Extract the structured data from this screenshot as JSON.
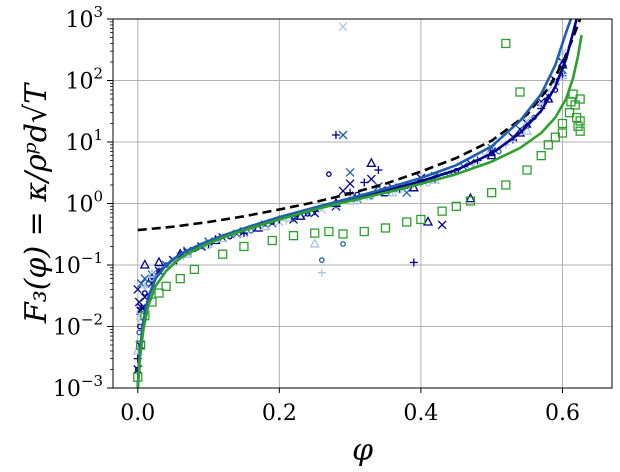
{
  "chart_data": {
    "type": "scatter",
    "title": "",
    "xlabel": "φ",
    "ylabel": "F₃(φ) = κ/ρᵖd√T",
    "xlim": [
      -0.035,
      0.67
    ],
    "ylim": [
      0.001,
      1000
    ],
    "yscale": "log",
    "grid": true,
    "x_ticks": [
      0.0,
      0.2,
      0.4,
      0.6
    ],
    "x_tick_labels": [
      "0.0",
      "0.2",
      "0.4",
      "0.6"
    ],
    "y_ticks": [
      0.001,
      0.01,
      0.1,
      1,
      10,
      100,
      1000
    ],
    "y_tick_labels": [
      {
        "base": "10",
        "exp": "−3"
      },
      {
        "base": "10",
        "exp": "−2"
      },
      {
        "base": "10",
        "exp": "−1"
      },
      {
        "base": "10",
        "exp": "0"
      },
      {
        "base": "10",
        "exp": "1"
      },
      {
        "base": "10",
        "exp": "2"
      },
      {
        "base": "10",
        "exp": "3"
      }
    ],
    "colors": {
      "navy": "#00008b",
      "blue": "#1f5fad",
      "light_blue": "#a9c4e4",
      "green": "#2ca02c",
      "black": "#000000"
    },
    "curves": [
      {
        "style": "dashed",
        "color": "#000000",
        "x": [
          0.0,
          0.05,
          0.1,
          0.15,
          0.2,
          0.25,
          0.3,
          0.35,
          0.4,
          0.45,
          0.5,
          0.55,
          0.58,
          0.6,
          0.615,
          0.625
        ],
        "y": [
          0.37,
          0.42,
          0.5,
          0.62,
          0.8,
          1.05,
          1.45,
          2.1,
          3.3,
          5.5,
          10.5,
          28,
          75,
          190,
          500,
          1000
        ]
      },
      {
        "style": "solid",
        "color": "#00008b",
        "x": [
          0.0,
          0.003,
          0.008,
          0.015,
          0.025,
          0.04,
          0.06,
          0.09,
          0.12,
          0.16,
          0.2,
          0.25,
          0.3,
          0.35,
          0.4,
          0.45,
          0.5,
          0.54,
          0.57,
          0.59,
          0.605,
          0.615,
          0.62
        ],
        "y": [
          0.001,
          0.004,
          0.012,
          0.03,
          0.06,
          0.1,
          0.15,
          0.22,
          0.3,
          0.42,
          0.58,
          0.82,
          1.15,
          1.6,
          2.3,
          3.5,
          6.5,
          14,
          32,
          80,
          220,
          600,
          1000
        ]
      },
      {
        "style": "solid",
        "color": "#1f5fad",
        "x": [
          0.0,
          0.003,
          0.008,
          0.015,
          0.025,
          0.04,
          0.06,
          0.09,
          0.12,
          0.16,
          0.2,
          0.25,
          0.3,
          0.35,
          0.4,
          0.45,
          0.5,
          0.54,
          0.57,
          0.59,
          0.605,
          0.612
        ],
        "y": [
          0.001,
          0.004,
          0.012,
          0.03,
          0.06,
          0.1,
          0.15,
          0.22,
          0.3,
          0.43,
          0.6,
          0.86,
          1.22,
          1.75,
          2.6,
          4.2,
          8.5,
          22,
          60,
          180,
          600,
          1000
        ]
      },
      {
        "style": "solid",
        "color": "#2ca02c",
        "x": [
          0.0,
          0.003,
          0.008,
          0.015,
          0.025,
          0.04,
          0.06,
          0.09,
          0.12,
          0.16,
          0.2,
          0.25,
          0.3,
          0.35,
          0.4,
          0.45,
          0.5,
          0.54,
          0.57,
          0.59,
          0.605,
          0.615,
          0.622,
          0.627
        ],
        "y": [
          0.001,
          0.003,
          0.009,
          0.022,
          0.045,
          0.08,
          0.13,
          0.2,
          0.28,
          0.4,
          0.55,
          0.8,
          1.1,
          1.5,
          2.1,
          3.0,
          4.8,
          8,
          14,
          25,
          50,
          110,
          250,
          550
        ]
      }
    ],
    "series": [
      {
        "marker": "x",
        "color": "#00008b",
        "points": [
          [
            0.0,
            0.04
          ],
          [
            0.002,
            0.025
          ],
          [
            0.004,
            0.018
          ],
          [
            0.003,
            0.005
          ],
          [
            0.0,
            0.002
          ],
          [
            0.006,
            0.02
          ],
          [
            0.01,
            0.03
          ],
          [
            0.02,
            0.05
          ],
          [
            0.03,
            0.08
          ],
          [
            0.05,
            0.12
          ],
          [
            0.07,
            0.16
          ],
          [
            0.09,
            0.2
          ],
          [
            0.12,
            0.28
          ],
          [
            0.15,
            0.35
          ],
          [
            0.18,
            0.45
          ],
          [
            0.22,
            0.55
          ],
          [
            0.25,
            0.7
          ],
          [
            0.28,
            0.9
          ],
          [
            0.29,
            1.6
          ],
          [
            0.3,
            2.1
          ],
          [
            0.33,
            2.5
          ],
          [
            0.36,
            1.8
          ],
          [
            0.4,
            2.6
          ],
          [
            0.43,
            0.45
          ],
          [
            0.47,
            4.5
          ],
          [
            0.5,
            7
          ],
          [
            0.53,
            12
          ],
          [
            0.55,
            20
          ],
          [
            0.57,
            45
          ],
          [
            0.59,
            100
          ],
          [
            0.6,
            200
          ]
        ]
      },
      {
        "marker": "x",
        "color": "#1f5fad",
        "points": [
          [
            0.005,
            0.05
          ],
          [
            0.01,
            0.06
          ],
          [
            0.02,
            0.07
          ],
          [
            0.04,
            0.1
          ],
          [
            0.07,
            0.17
          ],
          [
            0.1,
            0.24
          ],
          [
            0.14,
            0.32
          ],
          [
            0.19,
            0.48
          ],
          [
            0.24,
            0.7
          ],
          [
            0.29,
            13
          ],
          [
            0.3,
            3.2
          ],
          [
            0.31,
            1.2
          ],
          [
            0.34,
            1.9
          ],
          [
            0.38,
            1.5
          ],
          [
            0.42,
            2.8
          ],
          [
            0.46,
            4
          ],
          [
            0.5,
            8
          ],
          [
            0.54,
            16
          ],
          [
            0.58,
            55
          ],
          [
            0.6,
            150
          ]
        ]
      },
      {
        "marker": "x",
        "color": "#a9c4e4",
        "points": [
          [
            0.29,
            750
          ],
          [
            0.003,
            0.015
          ],
          [
            0.01,
            0.04
          ],
          [
            0.03,
            0.09
          ],
          [
            0.06,
            0.14
          ],
          [
            0.1,
            0.22
          ],
          [
            0.15,
            0.33
          ],
          [
            0.2,
            0.5
          ],
          [
            0.26,
            0.8
          ],
          [
            0.32,
            1.3
          ],
          [
            0.37,
            1.9
          ],
          [
            0.43,
            3
          ],
          [
            0.49,
            6
          ],
          [
            0.55,
            22
          ],
          [
            0.58,
            70
          ],
          [
            0.6,
            280
          ]
        ]
      },
      {
        "marker": "plus",
        "color": "#00008b",
        "points": [
          [
            0.0,
            0.003
          ],
          [
            0.005,
            0.02
          ],
          [
            0.02,
            0.06
          ],
          [
            0.06,
            0.14
          ],
          [
            0.1,
            0.22
          ],
          [
            0.15,
            0.33
          ],
          [
            0.2,
            0.55
          ],
          [
            0.25,
            0.75
          ],
          [
            0.28,
            13
          ],
          [
            0.3,
            1.5
          ],
          [
            0.32,
            2.2
          ],
          [
            0.34,
            3.5
          ],
          [
            0.37,
            1.7
          ],
          [
            0.39,
            0.11
          ],
          [
            0.42,
            2.5
          ],
          [
            0.48,
            5
          ],
          [
            0.53,
            11
          ],
          [
            0.57,
            35
          ],
          [
            0.6,
            120
          ]
        ]
      },
      {
        "marker": "plus",
        "color": "#a9c4e4",
        "points": [
          [
            0.26,
            0.075
          ],
          [
            0.01,
            0.045
          ],
          [
            0.05,
            0.12
          ],
          [
            0.13,
            0.3
          ],
          [
            0.21,
            0.52
          ],
          [
            0.31,
            1.1
          ],
          [
            0.36,
            1.6
          ],
          [
            0.44,
            3.1
          ],
          [
            0.52,
            9
          ],
          [
            0.59,
            90
          ]
        ]
      },
      {
        "marker": "circle",
        "color": "#00008b",
        "points": [
          [
            0.0,
            0.002
          ],
          [
            0.003,
            0.01
          ],
          [
            0.01,
            0.035
          ],
          [
            0.03,
            0.08
          ],
          [
            0.08,
            0.18
          ],
          [
            0.13,
            0.29
          ],
          [
            0.19,
            0.5
          ],
          [
            0.24,
            0.68
          ],
          [
            0.27,
            3
          ],
          [
            0.31,
            1.4
          ],
          [
            0.35,
            1.7
          ],
          [
            0.4,
            2.2
          ],
          [
            0.45,
            3.4
          ],
          [
            0.5,
            6.5
          ],
          [
            0.55,
            18
          ],
          [
            0.59,
            70
          ]
        ]
      },
      {
        "marker": "circle",
        "color": "#1f5fad",
        "points": [
          [
            0.002,
            0.008
          ],
          [
            0.015,
            0.05
          ],
          [
            0.04,
            0.1
          ],
          [
            0.09,
            0.2
          ],
          [
            0.16,
            0.36
          ],
          [
            0.22,
            0.56
          ],
          [
            0.26,
            0.12
          ],
          [
            0.29,
            0.22
          ],
          [
            0.33,
            1.3
          ],
          [
            0.38,
            1.9
          ],
          [
            0.44,
            3
          ],
          [
            0.51,
            7
          ],
          [
            0.56,
            25
          ],
          [
            0.6,
            130
          ]
        ]
      },
      {
        "marker": "circle",
        "color": "#a9c4e4",
        "points": [
          [
            0.004,
            0.012
          ],
          [
            0.02,
            0.06
          ],
          [
            0.05,
            0.11
          ],
          [
            0.1,
            0.2
          ],
          [
            0.17,
            0.38
          ],
          [
            0.23,
            0.6
          ],
          [
            0.28,
            0.9
          ],
          [
            0.33,
            1.25
          ],
          [
            0.37,
            1.6
          ],
          [
            0.41,
            2.1
          ],
          [
            0.47,
            4
          ],
          [
            0.53,
            11
          ],
          [
            0.57,
            40
          ],
          [
            0.6,
            200
          ]
        ]
      },
      {
        "marker": "triangle",
        "color": "#00008b",
        "points": [
          [
            0.01,
            0.1
          ],
          [
            0.03,
            0.11
          ],
          [
            0.06,
            0.15
          ],
          [
            0.11,
            0.25
          ],
          [
            0.17,
            0.4
          ],
          [
            0.23,
            0.62
          ],
          [
            0.28,
            1.0
          ],
          [
            0.33,
            4.5
          ],
          [
            0.35,
            1.5
          ],
          [
            0.39,
            1.8
          ],
          [
            0.41,
            0.5
          ],
          [
            0.47,
            1.2
          ],
          [
            0.5,
            6
          ],
          [
            0.54,
            14
          ],
          [
            0.58,
            50
          ],
          [
            0.6,
            180
          ]
        ]
      },
      {
        "marker": "triangle",
        "color": "#a9c4e4",
        "points": [
          [
            0.0,
            0.004
          ],
          [
            0.02,
            0.07
          ],
          [
            0.07,
            0.15
          ],
          [
            0.12,
            0.27
          ],
          [
            0.18,
            0.42
          ],
          [
            0.25,
            0.22
          ],
          [
            0.3,
            1.1
          ],
          [
            0.36,
            1.5
          ],
          [
            0.42,
            2.4
          ],
          [
            0.48,
            4.5
          ],
          [
            0.55,
            15
          ],
          [
            0.6,
            120
          ]
        ]
      },
      {
        "marker": "square",
        "color": "#2ca02c",
        "points": [
          [
            0.0,
            0.0015
          ],
          [
            0.004,
            0.005
          ],
          [
            0.01,
            0.015
          ],
          [
            0.02,
            0.025
          ],
          [
            0.03,
            0.035
          ],
          [
            0.04,
            0.045
          ],
          [
            0.06,
            0.06
          ],
          [
            0.08,
            0.085
          ],
          [
            0.12,
            0.15
          ],
          [
            0.15,
            0.2
          ],
          [
            0.19,
            0.25
          ],
          [
            0.22,
            0.3
          ],
          [
            0.25,
            0.33
          ],
          [
            0.27,
            0.35
          ],
          [
            0.29,
            0.32
          ],
          [
            0.32,
            0.35
          ],
          [
            0.35,
            0.4
          ],
          [
            0.38,
            0.5
          ],
          [
            0.4,
            0.55
          ],
          [
            0.43,
            0.75
          ],
          [
            0.45,
            0.9
          ],
          [
            0.47,
            1.1
          ],
          [
            0.5,
            1.5
          ],
          [
            0.52,
            2.0
          ],
          [
            0.52,
            400
          ],
          [
            0.54,
            65
          ],
          [
            0.55,
            3.5
          ],
          [
            0.57,
            6
          ],
          [
            0.58,
            9
          ],
          [
            0.59,
            12
          ],
          [
            0.6,
            14
          ],
          [
            0.6,
            20
          ],
          [
            0.61,
            30
          ],
          [
            0.612,
            45
          ],
          [
            0.615,
            60
          ],
          [
            0.618,
            40
          ],
          [
            0.62,
            25
          ],
          [
            0.622,
            18
          ],
          [
            0.625,
            15
          ],
          [
            0.625,
            22
          ],
          [
            0.625,
            50
          ]
        ]
      }
    ]
  }
}
